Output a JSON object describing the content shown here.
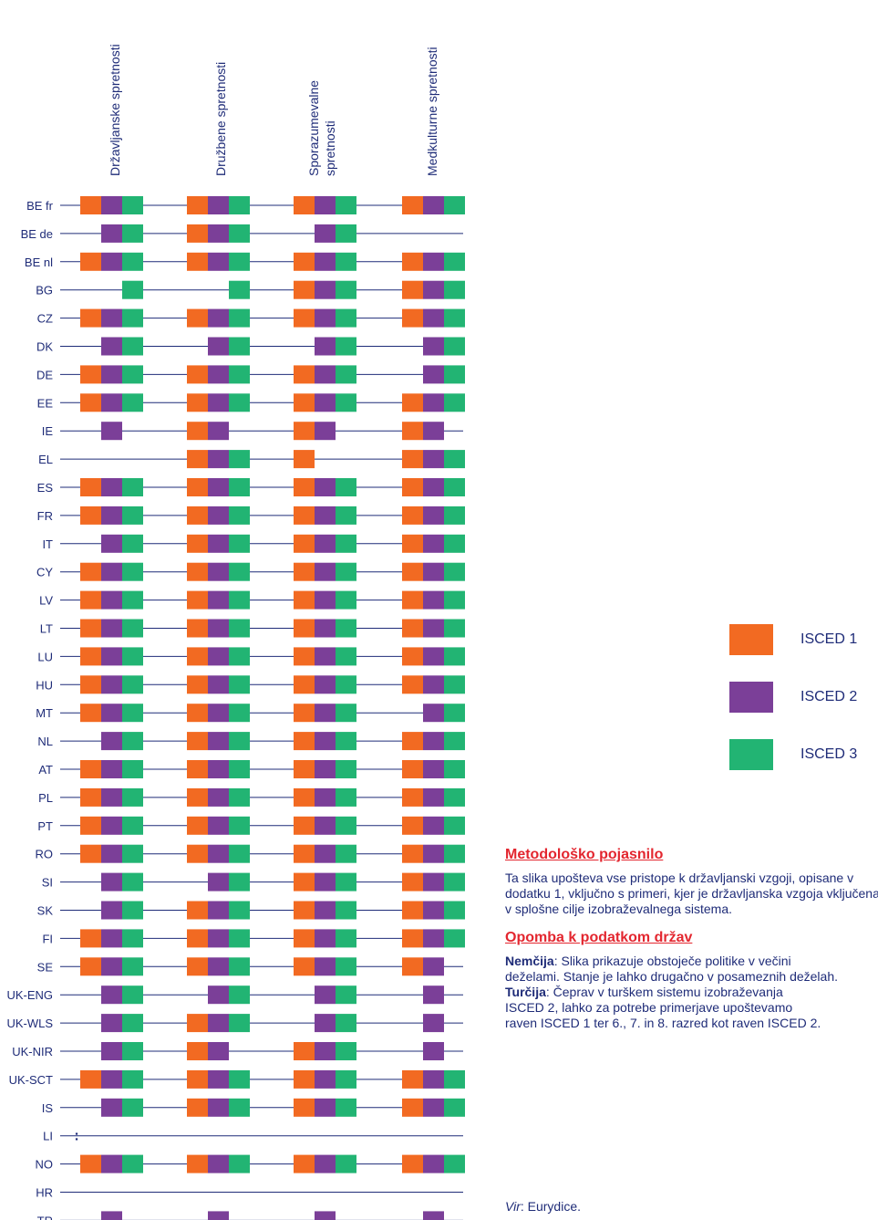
{
  "chart_data": {
    "type": "table",
    "columns": [
      "Državljanske spretnosti",
      "Družbene spretnosti",
      "Sporazumevalne spretnosti",
      "Medkulturne spretnosti"
    ],
    "column_header_lines": [
      [
        "Državljanske spretnosti"
      ],
      [
        "Družbene spretnosti"
      ],
      [
        "Sporazumevalne",
        "spretnosti"
      ],
      [
        "Medkulturne spretnosti"
      ]
    ],
    "rows": [
      {
        "country": "BE fr",
        "c": [
          [
            1,
            1,
            1
          ],
          [
            1,
            1,
            1
          ],
          [
            1,
            1,
            1
          ],
          [
            1,
            1,
            1
          ]
        ]
      },
      {
        "country": "BE de",
        "c": [
          [
            0,
            1,
            1
          ],
          [
            1,
            1,
            1
          ],
          [
            0,
            1,
            1
          ],
          [
            0,
            0,
            0
          ]
        ]
      },
      {
        "country": "BE nl",
        "c": [
          [
            1,
            1,
            1
          ],
          [
            1,
            1,
            1
          ],
          [
            1,
            1,
            1
          ],
          [
            1,
            1,
            1
          ]
        ]
      },
      {
        "country": "BG",
        "c": [
          [
            0,
            0,
            1
          ],
          [
            0,
            0,
            1
          ],
          [
            1,
            1,
            1
          ],
          [
            1,
            1,
            1
          ]
        ]
      },
      {
        "country": "CZ",
        "c": [
          [
            1,
            1,
            1
          ],
          [
            1,
            1,
            1
          ],
          [
            1,
            1,
            1
          ],
          [
            1,
            1,
            1
          ]
        ]
      },
      {
        "country": "DK",
        "c": [
          [
            0,
            1,
            1
          ],
          [
            0,
            1,
            1
          ],
          [
            0,
            1,
            1
          ],
          [
            0,
            1,
            1
          ]
        ]
      },
      {
        "country": "DE",
        "c": [
          [
            1,
            1,
            1
          ],
          [
            1,
            1,
            1
          ],
          [
            1,
            1,
            1
          ],
          [
            0,
            1,
            1
          ]
        ]
      },
      {
        "country": "EE",
        "c": [
          [
            1,
            1,
            1
          ],
          [
            1,
            1,
            1
          ],
          [
            1,
            1,
            1
          ],
          [
            1,
            1,
            1
          ]
        ]
      },
      {
        "country": "IE",
        "c": [
          [
            0,
            1,
            0
          ],
          [
            1,
            1,
            0
          ],
          [
            1,
            1,
            0
          ],
          [
            1,
            1,
            0
          ]
        ]
      },
      {
        "country": "EL",
        "c": [
          [
            0,
            0,
            0
          ],
          [
            1,
            1,
            1
          ],
          [
            1,
            0,
            0
          ],
          [
            1,
            1,
            1
          ]
        ]
      },
      {
        "country": "ES",
        "c": [
          [
            1,
            1,
            1
          ],
          [
            1,
            1,
            1
          ],
          [
            1,
            1,
            1
          ],
          [
            1,
            1,
            1
          ]
        ]
      },
      {
        "country": "FR",
        "c": [
          [
            1,
            1,
            1
          ],
          [
            1,
            1,
            1
          ],
          [
            1,
            1,
            1
          ],
          [
            1,
            1,
            1
          ]
        ]
      },
      {
        "country": "IT",
        "c": [
          [
            0,
            1,
            1
          ],
          [
            1,
            1,
            1
          ],
          [
            1,
            1,
            1
          ],
          [
            1,
            1,
            1
          ]
        ]
      },
      {
        "country": "CY",
        "c": [
          [
            1,
            1,
            1
          ],
          [
            1,
            1,
            1
          ],
          [
            1,
            1,
            1
          ],
          [
            1,
            1,
            1
          ]
        ]
      },
      {
        "country": "LV",
        "c": [
          [
            1,
            1,
            1
          ],
          [
            1,
            1,
            1
          ],
          [
            1,
            1,
            1
          ],
          [
            1,
            1,
            1
          ]
        ]
      },
      {
        "country": "LT",
        "c": [
          [
            1,
            1,
            1
          ],
          [
            1,
            1,
            1
          ],
          [
            1,
            1,
            1
          ],
          [
            1,
            1,
            1
          ]
        ]
      },
      {
        "country": "LU",
        "c": [
          [
            1,
            1,
            1
          ],
          [
            1,
            1,
            1
          ],
          [
            1,
            1,
            1
          ],
          [
            1,
            1,
            1
          ]
        ]
      },
      {
        "country": "HU",
        "c": [
          [
            1,
            1,
            1
          ],
          [
            1,
            1,
            1
          ],
          [
            1,
            1,
            1
          ],
          [
            1,
            1,
            1
          ]
        ]
      },
      {
        "country": "MT",
        "c": [
          [
            1,
            1,
            1
          ],
          [
            1,
            1,
            1
          ],
          [
            1,
            1,
            1
          ],
          [
            0,
            1,
            1
          ]
        ]
      },
      {
        "country": "NL",
        "c": [
          [
            0,
            1,
            1
          ],
          [
            1,
            1,
            1
          ],
          [
            1,
            1,
            1
          ],
          [
            1,
            1,
            1
          ]
        ]
      },
      {
        "country": "AT",
        "c": [
          [
            1,
            1,
            1
          ],
          [
            1,
            1,
            1
          ],
          [
            1,
            1,
            1
          ],
          [
            1,
            1,
            1
          ]
        ]
      },
      {
        "country": "PL",
        "c": [
          [
            1,
            1,
            1
          ],
          [
            1,
            1,
            1
          ],
          [
            1,
            1,
            1
          ],
          [
            1,
            1,
            1
          ]
        ]
      },
      {
        "country": "PT",
        "c": [
          [
            1,
            1,
            1
          ],
          [
            1,
            1,
            1
          ],
          [
            1,
            1,
            1
          ],
          [
            1,
            1,
            1
          ]
        ]
      },
      {
        "country": "RO",
        "c": [
          [
            1,
            1,
            1
          ],
          [
            1,
            1,
            1
          ],
          [
            1,
            1,
            1
          ],
          [
            1,
            1,
            1
          ]
        ]
      },
      {
        "country": "SI",
        "c": [
          [
            0,
            1,
            1
          ],
          [
            0,
            1,
            1
          ],
          [
            1,
            1,
            1
          ],
          [
            1,
            1,
            1
          ]
        ]
      },
      {
        "country": "SK",
        "c": [
          [
            0,
            1,
            1
          ],
          [
            1,
            1,
            1
          ],
          [
            1,
            1,
            1
          ],
          [
            1,
            1,
            1
          ]
        ]
      },
      {
        "country": "FI",
        "c": [
          [
            1,
            1,
            1
          ],
          [
            1,
            1,
            1
          ],
          [
            1,
            1,
            1
          ],
          [
            1,
            1,
            1
          ]
        ]
      },
      {
        "country": "SE",
        "c": [
          [
            1,
            1,
            1
          ],
          [
            1,
            1,
            1
          ],
          [
            1,
            1,
            1
          ],
          [
            1,
            1,
            0
          ]
        ]
      },
      {
        "country": "UK-ENG",
        "c": [
          [
            0,
            1,
            1
          ],
          [
            0,
            1,
            1
          ],
          [
            0,
            1,
            1
          ],
          [
            0,
            1,
            0
          ]
        ]
      },
      {
        "country": "UK-WLS",
        "c": [
          [
            0,
            1,
            1
          ],
          [
            1,
            1,
            1
          ],
          [
            0,
            1,
            1
          ],
          [
            0,
            1,
            0
          ]
        ]
      },
      {
        "country": "UK-NIR",
        "c": [
          [
            0,
            1,
            1
          ],
          [
            1,
            1,
            0
          ],
          [
            1,
            1,
            1
          ],
          [
            0,
            1,
            0
          ]
        ]
      },
      {
        "country": "UK-SCT",
        "c": [
          [
            1,
            1,
            1
          ],
          [
            1,
            1,
            1
          ],
          [
            1,
            1,
            1
          ],
          [
            1,
            1,
            1
          ]
        ]
      },
      {
        "country": "IS",
        "c": [
          [
            0,
            1,
            1
          ],
          [
            1,
            1,
            1
          ],
          [
            1,
            1,
            1
          ],
          [
            1,
            1,
            1
          ]
        ]
      },
      {
        "country": "LI",
        "c": [
          [
            0,
            0,
            0
          ],
          [
            0,
            0,
            0
          ],
          [
            0,
            0,
            0
          ],
          [
            0,
            0,
            0
          ]
        ],
        "not_available": true,
        "marker": ":"
      },
      {
        "country": "NO",
        "c": [
          [
            1,
            1,
            1
          ],
          [
            1,
            1,
            1
          ],
          [
            1,
            1,
            1
          ],
          [
            1,
            1,
            1
          ]
        ]
      },
      {
        "country": "HR",
        "c": [
          [
            0,
            0,
            0
          ],
          [
            0,
            0,
            0
          ],
          [
            0,
            0,
            0
          ],
          [
            0,
            0,
            0
          ]
        ]
      },
      {
        "country": "TR",
        "c": [
          [
            0,
            1,
            0
          ],
          [
            0,
            1,
            0
          ],
          [
            0,
            1,
            0
          ],
          [
            0,
            1,
            0
          ]
        ]
      }
    ],
    "legend": [
      {
        "label": "ISCED 1",
        "color": "#f26a22"
      },
      {
        "label": "ISCED 2",
        "color": "#7b3f98"
      },
      {
        "label": "ISCED 3",
        "color": "#22b473"
      }
    ]
  },
  "colors": {
    "text": "#1f2c78",
    "line": "#1f2c78",
    "heading": "#e3262f"
  },
  "notes": {
    "heading1": "Metodološko pojasnilo",
    "text1_lines": [
      "Ta slika upošteva vse pristope k državljanski vzgoji, opisane v",
      "dodatku 1, vključno s primeri, kjer je državljanska vzgoja vključena",
      "v splošne cilje izobraževalnega sistema."
    ],
    "heading2": "Opomba k podatkom držav",
    "country_notes": [
      {
        "bold": "Nemčija",
        "text": ": Slika prikazuje obstoječe politike v večini"
      },
      {
        "bold": "",
        "text": "deželami. Stanje je lahko drugačno v posameznih deželah."
      },
      {
        "bold": "Turčija",
        "text": ": Čeprav v turškem sistemu izobraževanja"
      },
      {
        "bold": "",
        "text": "ISCED 2, lahko za potrebe primerjave upoštevamo"
      },
      {
        "bold": "",
        "text": "raven ISCED 1 ter 6., 7. in 8. razred kot raven ISCED 2."
      }
    ]
  },
  "source": {
    "label": "Vir",
    "text": ": Eurydice."
  }
}
